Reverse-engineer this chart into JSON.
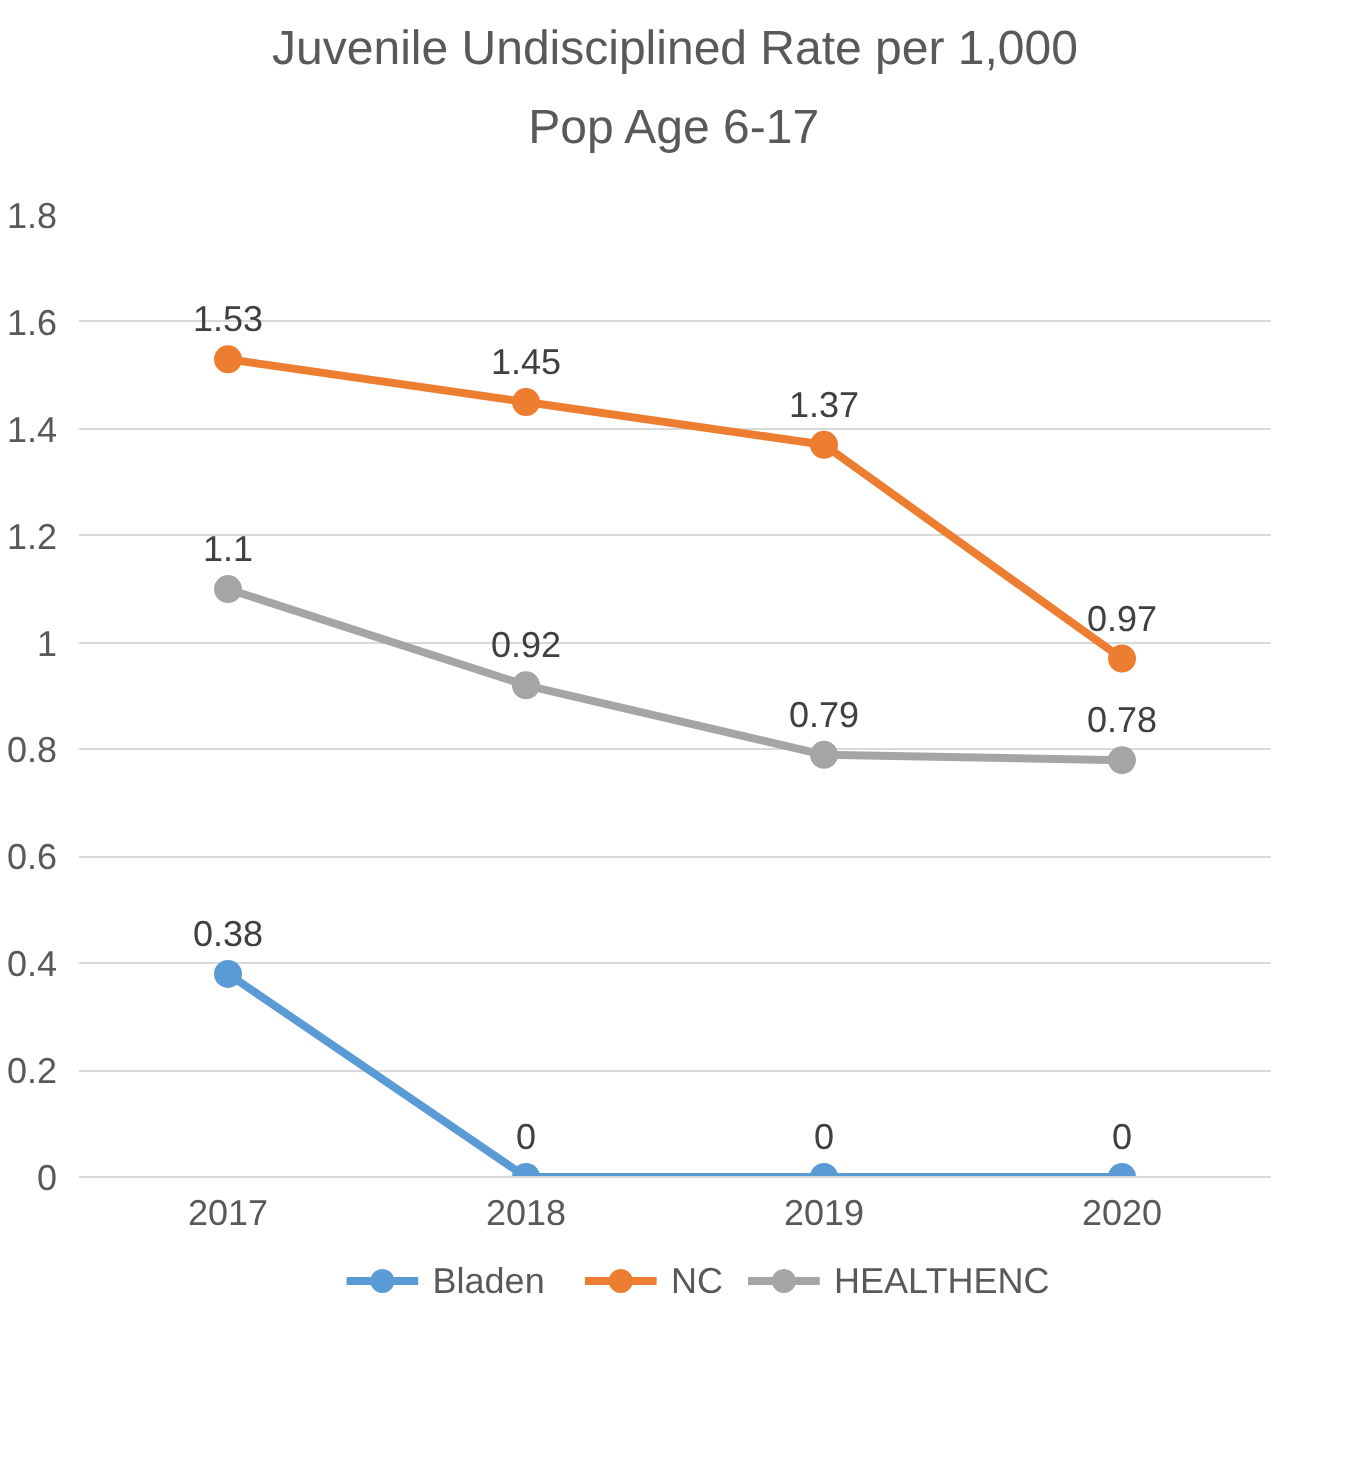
{
  "chart_data": {
    "type": "line",
    "title": "Juvenile Undisciplined Rate per 1,000 Pop Age 6-17",
    "categories": [
      "2017",
      "2018",
      "2019",
      "2020"
    ],
    "series": [
      {
        "name": "Bladen",
        "color": "#5b9bd5",
        "values": [
          0.38,
          0,
          0,
          0
        ]
      },
      {
        "name": "NC",
        "color": "#ed7d31",
        "values": [
          1.53,
          1.45,
          1.37,
          0.97
        ]
      },
      {
        "name": "HEALTHENC",
        "color": "#a5a5a5",
        "values": [
          1.1,
          0.92,
          0.79,
          0.78
        ]
      }
    ],
    "ylim": [
      0,
      1.8
    ],
    "yticks": [
      0,
      0.2,
      0.4,
      0.6,
      0.8,
      1,
      1.2,
      1.4,
      1.6,
      1.8
    ],
    "grid": "y",
    "legend": "bottom",
    "marker": "circle",
    "line_style": "solid",
    "data_labels": true
  }
}
